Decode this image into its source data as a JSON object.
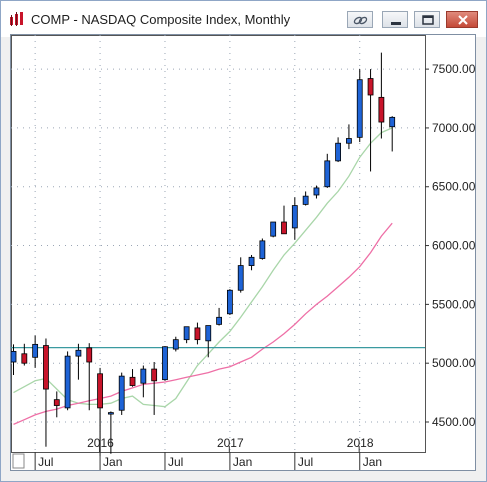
{
  "window": {
    "title": "COMP - NASDAQ Composite Index, Monthly",
    "icons": [
      "chart-app-icon",
      "link-icon",
      "minimize-icon",
      "maximize-icon",
      "close-icon"
    ]
  },
  "chart_data": {
    "type": "candlestick",
    "title": "",
    "ylabel": "",
    "xlabel": "",
    "ylim": [
      4245,
      7790
    ],
    "y_ticks": [
      "4500.00",
      "5000.00",
      "5500.00",
      "6000.00",
      "6500.00",
      "7000.00",
      "7500.00"
    ],
    "y_tick_values": [
      4500,
      5000,
      5500,
      6000,
      6500,
      7000,
      7500
    ],
    "x_month_labels": [
      {
        "text": "Jul",
        "index": 2
      },
      {
        "text": "Jan",
        "index": 8
      },
      {
        "text": "Jul",
        "index": 14
      },
      {
        "text": "Jan",
        "index": 20
      },
      {
        "text": "Jul",
        "index": 26
      },
      {
        "text": "Jan",
        "index": 32
      }
    ],
    "x_year_labels": [
      {
        "text": "2016",
        "index": 8.5
      },
      {
        "text": "2017",
        "index": 20.5
      },
      {
        "text": "2018",
        "index": 32.5
      }
    ],
    "grid": true,
    "horizontal_line": 5132,
    "colors": {
      "up": "#1e63d6",
      "down": "#c8142a",
      "sma_short": "#a9d6a9",
      "sma_long": "#ee6fa6",
      "hline": "#3a9aa0",
      "grid": "#9aa5b5"
    },
    "candles": [
      {
        "o": 5010,
        "h": 5160,
        "l": 4900,
        "c": 5100
      },
      {
        "o": 5080,
        "h": 5165,
        "l": 4980,
        "c": 5000
      },
      {
        "o": 5050,
        "h": 5235,
        "l": 4960,
        "c": 5160
      },
      {
        "o": 5150,
        "h": 5210,
        "l": 4290,
        "c": 4780
      },
      {
        "o": 4690,
        "h": 4760,
        "l": 4540,
        "c": 4640
      },
      {
        "o": 4620,
        "h": 5100,
        "l": 4600,
        "c": 5060
      },
      {
        "o": 5060,
        "h": 5165,
        "l": 4860,
        "c": 5110
      },
      {
        "o": 5130,
        "h": 5170,
        "l": 4600,
        "c": 5010
      },
      {
        "o": 4910,
        "h": 4960,
        "l": 4210,
        "c": 4620
      },
      {
        "o": 4570,
        "h": 4590,
        "l": 4230,
        "c": 4580
      },
      {
        "o": 4600,
        "h": 4920,
        "l": 4560,
        "c": 4890
      },
      {
        "o": 4880,
        "h": 4950,
        "l": 4800,
        "c": 4810
      },
      {
        "o": 4830,
        "h": 4980,
        "l": 4710,
        "c": 4950
      },
      {
        "o": 4950,
        "h": 5010,
        "l": 4560,
        "c": 4850
      },
      {
        "o": 4860,
        "h": 5145,
        "l": 4850,
        "c": 5140
      },
      {
        "o": 5120,
        "h": 5225,
        "l": 5100,
        "c": 5200
      },
      {
        "o": 5200,
        "h": 5290,
        "l": 5170,
        "c": 5310
      },
      {
        "o": 5300,
        "h": 5345,
        "l": 5160,
        "c": 5200
      },
      {
        "o": 5190,
        "h": 5310,
        "l": 5050,
        "c": 5320
      },
      {
        "o": 5330,
        "h": 5470,
        "l": 5320,
        "c": 5390
      },
      {
        "o": 5420,
        "h": 5630,
        "l": 5410,
        "c": 5620
      },
      {
        "o": 5620,
        "h": 5900,
        "l": 5600,
        "c": 5830
      },
      {
        "o": 5830,
        "h": 5920,
        "l": 5790,
        "c": 5900
      },
      {
        "o": 5890,
        "h": 6060,
        "l": 5880,
        "c": 6040
      },
      {
        "o": 6080,
        "h": 6200,
        "l": 6070,
        "c": 6200
      },
      {
        "o": 6200,
        "h": 6340,
        "l": 6130,
        "c": 6100
      },
      {
        "o": 6150,
        "h": 6410,
        "l": 6050,
        "c": 6340
      },
      {
        "o": 6350,
        "h": 6460,
        "l": 6340,
        "c": 6420
      },
      {
        "o": 6430,
        "h": 6510,
        "l": 6400,
        "c": 6490
      },
      {
        "o": 6500,
        "h": 6780,
        "l": 6490,
        "c": 6720
      },
      {
        "o": 6720,
        "h": 6920,
        "l": 6710,
        "c": 6870
      },
      {
        "o": 6870,
        "h": 7030,
        "l": 6820,
        "c": 6910
      },
      {
        "o": 6920,
        "h": 7500,
        "l": 6880,
        "c": 7410
      },
      {
        "o": 7420,
        "h": 7500,
        "l": 6630,
        "c": 7280
      },
      {
        "o": 7260,
        "h": 7640,
        "l": 6910,
        "c": 7050
      },
      {
        "o": 7010,
        "h": 7100,
        "l": 6800,
        "c": 7090
      }
    ],
    "series": [
      {
        "values": [
          4750,
          4800,
          4850,
          4870,
          4780,
          4690,
          4660,
          4650,
          4650,
          4660,
          4700,
          4720,
          4650,
          4640,
          4630,
          4700,
          4840,
          4980,
          5080,
          5180,
          5270,
          5390,
          5520,
          5650,
          5790,
          5920,
          6020,
          6130,
          6240,
          6360,
          6460,
          6590,
          6750,
          6870,
          6960,
          7000
        ]
      },
      {
        "values": [
          4480,
          4520,
          4560,
          4590,
          4610,
          4640,
          4660,
          4680,
          4700,
          4720,
          4760,
          4790,
          4820,
          4830,
          4840,
          4860,
          4880,
          4900,
          4920,
          4950,
          4970,
          5010,
          5050,
          5120,
          5180,
          5250,
          5330,
          5420,
          5500,
          5570,
          5650,
          5730,
          5820,
          5940,
          6080,
          6190
        ]
      }
    ]
  }
}
